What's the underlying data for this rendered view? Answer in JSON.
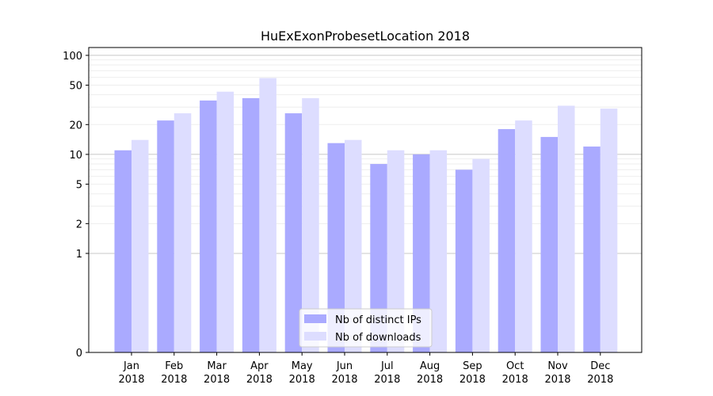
{
  "chart_data": {
    "type": "bar",
    "title": "HuExExonProbesetLocation 2018",
    "xlabel": "",
    "ylabel": "",
    "yscale": "symlog",
    "ylim": [
      0,
      120
    ],
    "categories": [
      {
        "month": "Jan",
        "year": "2018"
      },
      {
        "month": "Feb",
        "year": "2018"
      },
      {
        "month": "Mar",
        "year": "2018"
      },
      {
        "month": "Apr",
        "year": "2018"
      },
      {
        "month": "May",
        "year": "2018"
      },
      {
        "month": "Jun",
        "year": "2018"
      },
      {
        "month": "Jul",
        "year": "2018"
      },
      {
        "month": "Aug",
        "year": "2018"
      },
      {
        "month": "Sep",
        "year": "2018"
      },
      {
        "month": "Oct",
        "year": "2018"
      },
      {
        "month": "Nov",
        "year": "2018"
      },
      {
        "month": "Dec",
        "year": "2018"
      }
    ],
    "yticks": [
      0,
      1,
      2,
      5,
      10,
      20,
      50,
      100
    ],
    "series": [
      {
        "name": "Nb of distinct IPs",
        "color": "#aaaaff",
        "values": [
          11,
          22,
          35,
          37,
          26,
          13,
          8,
          10,
          7,
          18,
          15,
          12
        ]
      },
      {
        "name": "Nb of downloads",
        "color": "#ddddff",
        "values": [
          14,
          26,
          43,
          59,
          37,
          14,
          11,
          11,
          9,
          22,
          31,
          29
        ]
      }
    ],
    "grid": true,
    "legend_position": "bottom-center"
  }
}
